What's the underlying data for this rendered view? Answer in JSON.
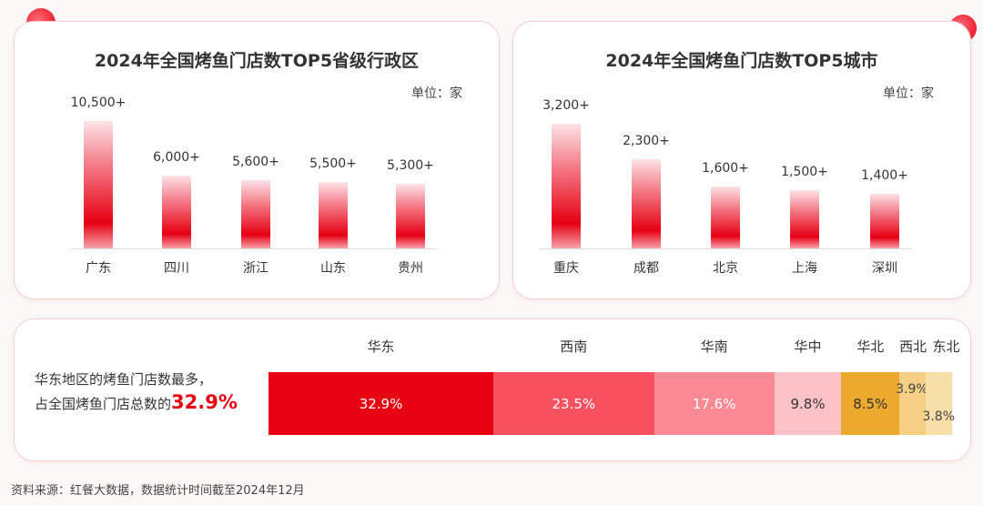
{
  "chart_data": [
    {
      "type": "bar",
      "title": "2024年全国烤鱼门店数TOP5省级行政区",
      "unit": "单位：家",
      "categories": [
        "广东",
        "四川",
        "浙江",
        "山东",
        "贵州"
      ],
      "values": [
        10500,
        6000,
        5600,
        5500,
        5300
      ],
      "labels": [
        "10,500+",
        "6,000+",
        "5,600+",
        "5,500+",
        "5,300+"
      ]
    },
    {
      "type": "bar",
      "title": "2024年全国烤鱼门店数TOP5城市",
      "unit": "单位：家",
      "categories": [
        "重庆",
        "成都",
        "北京",
        "上海",
        "深圳"
      ],
      "values": [
        3200,
        2300,
        1600,
        1500,
        1400
      ],
      "labels": [
        "3,200+",
        "2,300+",
        "1,600+",
        "1,500+",
        "1,400+"
      ]
    },
    {
      "type": "bar",
      "stacked": true,
      "categories": [
        "华东",
        "西南",
        "华南",
        "华中",
        "华北",
        "西北",
        "东北"
      ],
      "values": [
        32.9,
        23.5,
        17.6,
        9.8,
        8.5,
        3.9,
        3.8
      ],
      "labels": [
        "32.9%",
        "23.5%",
        "17.6%",
        "9.8%",
        "8.5%",
        "3.9%",
        "3.8%"
      ],
      "colors": [
        "#e60012",
        "#f7505f",
        "#fb8a94",
        "#fdc3c9",
        "#eba92e",
        "#f4cf84",
        "#f8dfa8"
      ]
    }
  ],
  "note": {
    "line1": "华东地区的烤鱼门店数最多，",
    "line2": "占全国烤鱼门店总数的",
    "highlight": "32.9%"
  },
  "source": "资料来源：红餐大数据，数据统计时间截至2024年12月"
}
